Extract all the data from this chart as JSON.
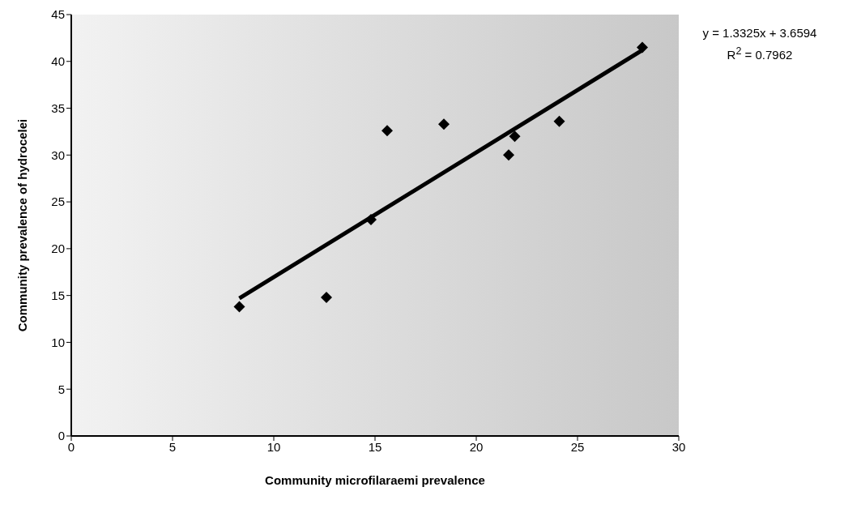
{
  "chart_data": {
    "type": "scatter",
    "xlabel": "Community microfilaraemi prevalence",
    "ylabel": "Community prevalence of hydrocelei",
    "xlim": [
      0,
      30
    ],
    "xticks": [
      0,
      5,
      10,
      15,
      20,
      25,
      30
    ],
    "ylim": [
      0,
      45
    ],
    "yticks": [
      0,
      5,
      10,
      15,
      20,
      25,
      30,
      35,
      40,
      45
    ],
    "grid": false,
    "legend": false,
    "series": [
      {
        "color": "#000000",
        "marker": "diamond",
        "x": [
          8.3,
          12.6,
          14.8,
          15.6,
          18.4,
          21.6,
          21.9,
          24.1,
          28.2
        ],
        "values": [
          13.8,
          14.8,
          23.1,
          32.6,
          33.3,
          30.0,
          32.0,
          33.6,
          41.5
        ]
      },
      {
        "type": "line",
        "color": "#000000",
        "marker": "none",
        "x": [
          8.3,
          28.2
        ],
        "values": [
          14.7,
          41.2
        ]
      }
    ],
    "annotations": [
      "y = 1.3325x + 3.6594",
      "R$^{2}$ = 0.7962"
    ]
  }
}
